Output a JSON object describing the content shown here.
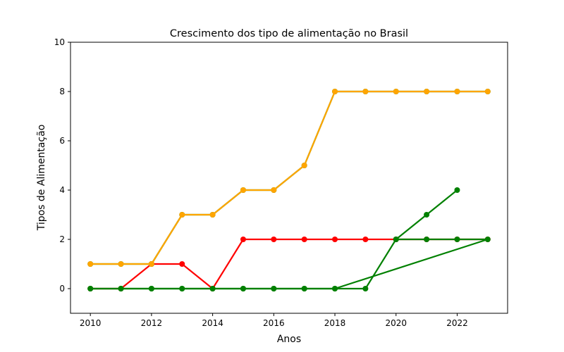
{
  "chart_data": {
    "type": "line",
    "title": "Crescimento dos tipo de alimentação no Brasil",
    "xlabel": "Anos",
    "ylabel": "Tipos de Alimentação",
    "xlim": [
      2009.35,
      2023.65
    ],
    "ylim": [
      -1,
      10
    ],
    "xticks": [
      2010,
      2012,
      2014,
      2016,
      2018,
      2020,
      2022
    ],
    "yticks": [
      0,
      2,
      4,
      6,
      8,
      10
    ],
    "grid": false,
    "legend": "none",
    "series": [
      {
        "color": "#ff0000",
        "points": [
          [
            2010,
            0
          ],
          [
            2011,
            0
          ],
          [
            2012,
            1
          ],
          [
            2013,
            1
          ],
          [
            2014,
            0
          ],
          [
            2015,
            2
          ],
          [
            2016,
            2
          ],
          [
            2017,
            2
          ],
          [
            2018,
            2
          ],
          [
            2019,
            2
          ],
          [
            2020,
            2
          ],
          [
            2021,
            2
          ],
          [
            2022,
            2
          ],
          [
            2023,
            2
          ]
        ]
      },
      {
        "color": "#008000",
        "points": [
          [
            2010,
            0
          ],
          [
            2011,
            0
          ],
          [
            2012,
            0
          ],
          [
            2013,
            0
          ],
          [
            2014,
            0
          ],
          [
            2015,
            0
          ],
          [
            2016,
            0
          ],
          [
            2017,
            0
          ],
          [
            2018,
            0
          ],
          [
            2019,
            0
          ],
          [
            2020,
            2
          ],
          [
            2021,
            3
          ],
          [
            2022,
            4
          ]
        ]
      },
      {
        "color": "#008000",
        "points": [
          [
            2010,
            0
          ],
          [
            2011,
            0
          ],
          [
            2012,
            0
          ],
          [
            2013,
            0
          ],
          [
            2014,
            0
          ],
          [
            2015,
            0
          ],
          [
            2016,
            0
          ],
          [
            2017,
            0
          ],
          [
            2018,
            0
          ],
          [
            2023,
            2
          ],
          [
            2022,
            2
          ],
          [
            2021,
            2
          ],
          [
            2020,
            2
          ]
        ]
      },
      {
        "color": "#008000",
        "points": [
          [
            2010,
            1
          ],
          [
            2011,
            1
          ],
          [
            2012,
            1
          ],
          [
            2013,
            3
          ],
          [
            2014,
            3
          ],
          [
            2015,
            4
          ],
          [
            2016,
            4
          ],
          [
            2017,
            5
          ],
          [
            2018,
            8
          ],
          [
            2019,
            8
          ],
          [
            2020,
            8
          ],
          [
            2021,
            8
          ],
          [
            2022,
            8
          ],
          [
            2023,
            8
          ]
        ]
      },
      {
        "color": "#ffa500",
        "points": [
          [
            2010,
            1
          ],
          [
            2011,
            1
          ],
          [
            2012,
            1
          ],
          [
            2013,
            3
          ],
          [
            2014,
            3
          ],
          [
            2015,
            4
          ],
          [
            2016,
            4
          ],
          [
            2017,
            5
          ],
          [
            2018,
            8
          ],
          [
            2019,
            8
          ],
          [
            2020,
            8
          ],
          [
            2021,
            8
          ],
          [
            2022,
            8
          ],
          [
            2023,
            8
          ]
        ]
      }
    ]
  }
}
